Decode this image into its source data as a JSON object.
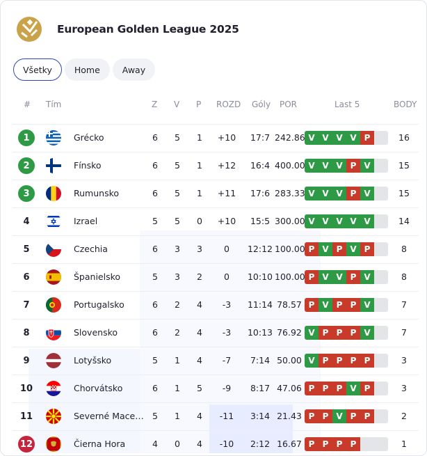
{
  "header": {
    "title": "European Golden League 2025",
    "logo_icon": "volleyball-logo-icon"
  },
  "tabs": [
    {
      "label": "Všetky",
      "active": true
    },
    {
      "label": "Home",
      "active": false
    },
    {
      "label": "Away",
      "active": false
    }
  ],
  "columns": {
    "pos": "#",
    "team": "Tím",
    "z": "Z",
    "v": "V",
    "p": "P",
    "rozd": "ROZD",
    "goly": "Góly",
    "por": "POR",
    "last5": "Last 5",
    "body": "BODY"
  },
  "colors": {
    "win": "#2e9a46",
    "loss": "#c83a2a",
    "qualify_green": "#2e9a46",
    "relegation_red": "#c4243c",
    "accent": "#2f46b8"
  },
  "rows": [
    {
      "pos": "1",
      "marker": "green",
      "flag": "greece-flag-icon",
      "team": "Grécko",
      "z": "6",
      "v": "5",
      "p": "1",
      "rozd": "+10",
      "goly": "17:7",
      "por": "242.86",
      "form": [
        "V",
        "V",
        "V",
        "V",
        "P"
      ],
      "body": "16"
    },
    {
      "pos": "2",
      "marker": "green",
      "flag": "finland-flag-icon",
      "team": "Fínsko",
      "z": "6",
      "v": "5",
      "p": "1",
      "rozd": "+12",
      "goly": "16:4",
      "por": "400.00",
      "form": [
        "V",
        "V",
        "V",
        "P",
        "V"
      ],
      "body": "15"
    },
    {
      "pos": "3",
      "marker": "green",
      "flag": "romania-flag-icon",
      "team": "Rumunsko",
      "z": "6",
      "v": "5",
      "p": "1",
      "rozd": "+11",
      "goly": "17:6",
      "por": "283.33",
      "form": [
        "V",
        "V",
        "V",
        "P",
        "V"
      ],
      "body": "15"
    },
    {
      "pos": "4",
      "marker": "none",
      "flag": "israel-flag-icon",
      "team": "Izrael",
      "z": "5",
      "v": "5",
      "p": "0",
      "rozd": "+10",
      "goly": "15:5",
      "por": "300.00",
      "form": [
        "V",
        "V",
        "V",
        "V",
        "V"
      ],
      "body": "14"
    },
    {
      "pos": "5",
      "marker": "none",
      "flag": "czechia-flag-icon",
      "team": "Czechia",
      "z": "6",
      "v": "3",
      "p": "3",
      "rozd": "0",
      "goly": "12:12",
      "por": "100.00",
      "form": [
        "P",
        "V",
        "P",
        "V",
        "P"
      ],
      "body": "8"
    },
    {
      "pos": "6",
      "marker": "none",
      "flag": "spain-flag-icon",
      "team": "Španielsko",
      "z": "5",
      "v": "3",
      "p": "2",
      "rozd": "0",
      "goly": "10:10",
      "por": "100.00",
      "form": [
        "P",
        "V",
        "V",
        "P",
        "V"
      ],
      "body": "8"
    },
    {
      "pos": "7",
      "marker": "none",
      "flag": "portugal-flag-icon",
      "team": "Portugalsko",
      "z": "6",
      "v": "2",
      "p": "4",
      "rozd": "-3",
      "goly": "11:14",
      "por": "78.57",
      "form": [
        "P",
        "V",
        "P",
        "P",
        "V"
      ],
      "body": "7"
    },
    {
      "pos": "8",
      "marker": "none",
      "flag": "slovakia-flag-icon",
      "team": "Slovensko",
      "z": "6",
      "v": "2",
      "p": "4",
      "rozd": "-3",
      "goly": "10:13",
      "por": "76.92",
      "form": [
        "V",
        "P",
        "P",
        "P",
        "V"
      ],
      "body": "7"
    },
    {
      "pos": "9",
      "marker": "none",
      "flag": "latvia-flag-icon",
      "team": "Lotyšsko",
      "z": "5",
      "v": "1",
      "p": "4",
      "rozd": "-7",
      "goly": "7:14",
      "por": "50.00",
      "form": [
        "V",
        "P",
        "P",
        "P",
        "P"
      ],
      "body": "3"
    },
    {
      "pos": "10",
      "marker": "none",
      "flag": "croatia-flag-icon",
      "team": "Chorvátsko",
      "z": "6",
      "v": "1",
      "p": "5",
      "rozd": "-9",
      "goly": "8:17",
      "por": "47.06",
      "form": [
        "P",
        "P",
        "P",
        "V",
        "P"
      ],
      "body": "3"
    },
    {
      "pos": "11",
      "marker": "none",
      "flag": "north-macedonia-flag-icon",
      "team": "Severné Macedónsko",
      "z": "5",
      "v": "1",
      "p": "4",
      "rozd": "-11",
      "goly": "3:14",
      "por": "21.43",
      "form": [
        "P",
        "P",
        "V",
        "P",
        "P"
      ],
      "body": "2"
    },
    {
      "pos": "12",
      "marker": "red",
      "flag": "montenegro-flag-icon",
      "team": "Čierna Hora",
      "z": "4",
      "v": "0",
      "p": "4",
      "rozd": "-10",
      "goly": "2:12",
      "por": "16.67",
      "form": [
        "P",
        "P",
        "P",
        "P"
      ],
      "body": "1"
    }
  ]
}
